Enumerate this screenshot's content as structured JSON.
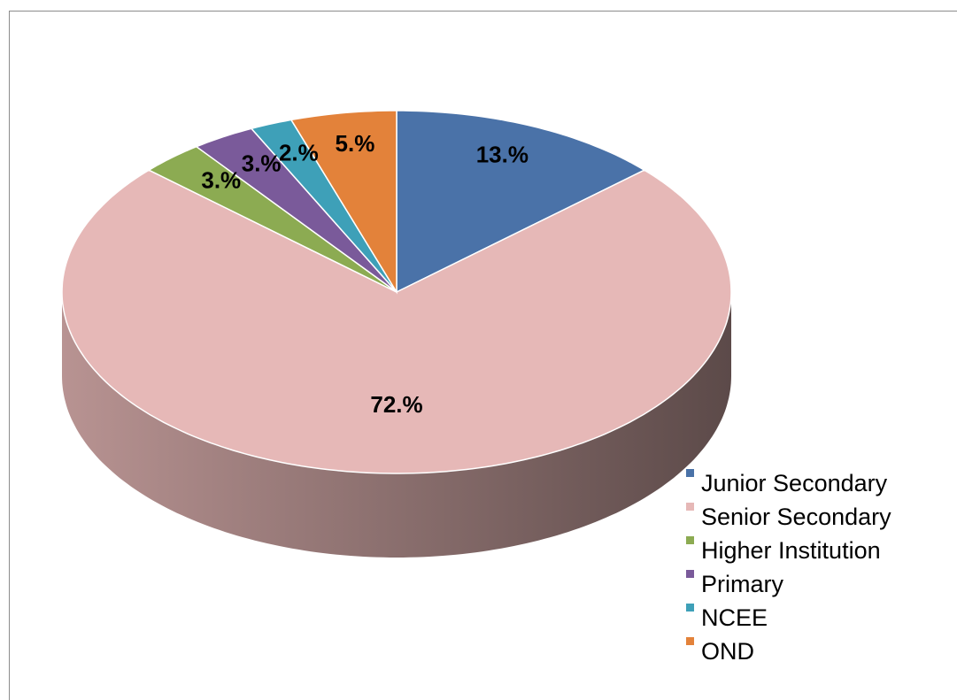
{
  "chart_data": {
    "type": "pie",
    "categories": [
      "Junior Secondary",
      "Senior Secondary",
      "Higher Institution",
      "Primary",
      "NCEE",
      "OND"
    ],
    "values": [
      13,
      72,
      3,
      3,
      2,
      5
    ],
    "value_labels": [
      "13.%",
      "72.%",
      "3.%",
      "3.%",
      "2.%",
      "5.%"
    ],
    "colors": [
      "#4a72a8",
      "#e6b8b7",
      "#8cab52",
      "#7a5a9a",
      "#3ea0b8",
      "#e3823a"
    ],
    "legend": "right"
  }
}
